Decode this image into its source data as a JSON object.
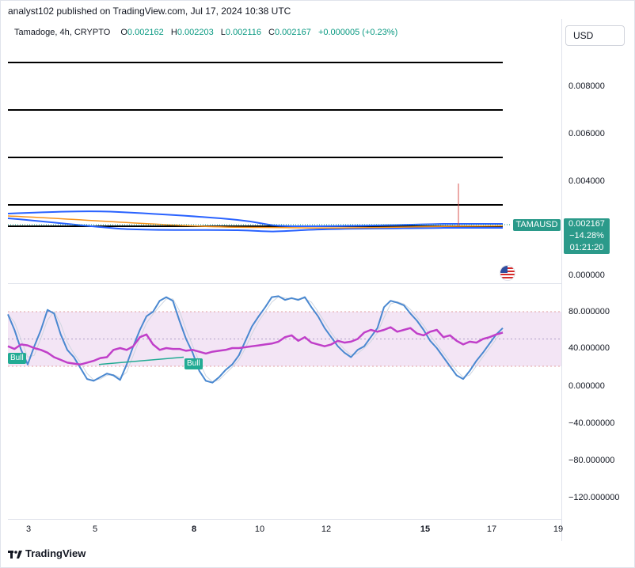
{
  "header": {
    "published": "analyst102 published on TradingView.com, Jul 17, 2024 10:38 UTC"
  },
  "legend": {
    "symbol": "Tamadoge, 4h, CRYPTO",
    "o_label": "O",
    "o": "0.002162",
    "h_label": "H",
    "h": "0.002203",
    "l_label": "L",
    "l": "0.002116",
    "c_label": "C",
    "c": "0.002167",
    "change": "+0.000005 (+0.23%)"
  },
  "toolbar": {
    "currency": "USD"
  },
  "price_axis": [
    "0.008000",
    "0.006000",
    "0.004000",
    "0.000000"
  ],
  "price_tag": {
    "ticker": "TAMAUSD",
    "price": "0.002167",
    "change_pct": "−14.28%",
    "countdown": "01:21:20"
  },
  "osc_axis": [
    "80.000000",
    "40.000000",
    "0.000000",
    "−40.000000",
    "−80.000000",
    "−120.000000"
  ],
  "signals": [
    "Bull",
    "Bull"
  ],
  "time_axis": [
    "3",
    "5",
    "8",
    "10",
    "12",
    "15",
    "17",
    "19"
  ],
  "footer": {
    "brand": "TradingView"
  },
  "colors": {
    "up": "#089981",
    "tag": "#2b9a8a",
    "band": "#2962ff",
    "stoch": "#4a88d0",
    "rsi": "#c03fc9",
    "signal": "#22ab94"
  },
  "icons": [
    "us-flag-icon",
    "tradingview-logo-icon"
  ],
  "chart_data": {
    "type": "line",
    "price_pane": {
      "horizontal_levels": [
        0.009,
        0.007,
        0.005,
        0.003,
        0.0021
      ],
      "last_close": 0.002167,
      "spike_high": 0.0039,
      "ylim": [
        0.0,
        0.0092
      ]
    },
    "oscillator_pane": {
      "ylim": [
        -130,
        110
      ],
      "overbought": 80,
      "oversold": 20,
      "series": [
        {
          "values": [
            77,
            60,
            38,
            22,
            42,
            60,
            82,
            78,
            55,
            38,
            30,
            18,
            6,
            4,
            8,
            12,
            10,
            5,
            22,
            42,
            60,
            75,
            80,
            92,
            96,
            92,
            70,
            50,
            35,
            15,
            4,
            2,
            8,
            16,
            22,
            32,
            48,
            64,
            75,
            85,
            96,
            97,
            93,
            95,
            93,
            96,
            85,
            75,
            62,
            52,
            42,
            35,
            30,
            38,
            42,
            52,
            62,
            85,
            92,
            90,
            87,
            78,
            70,
            60,
            48,
            40,
            30,
            20,
            10,
            6,
            15,
            26,
            35,
            45,
            55,
            62
          ]
        },
        {
          "values": [
            42,
            39,
            44,
            43,
            40,
            38,
            35,
            30,
            27,
            24,
            23,
            22,
            24,
            26,
            29,
            30,
            38,
            40,
            38,
            42,
            52,
            55,
            44,
            38,
            40,
            39,
            39,
            37,
            38,
            36,
            34,
            36,
            37,
            38,
            40,
            40,
            41,
            42,
            43,
            44,
            45,
            47,
            52,
            54,
            48,
            52,
            46,
            44,
            42,
            44,
            48,
            46,
            47,
            50,
            57,
            60,
            58,
            60,
            63,
            58,
            60,
            62,
            56,
            54,
            58,
            60,
            52,
            54,
            48,
            44,
            47,
            46,
            50,
            52,
            55,
            57
          ]
        }
      ]
    }
  }
}
